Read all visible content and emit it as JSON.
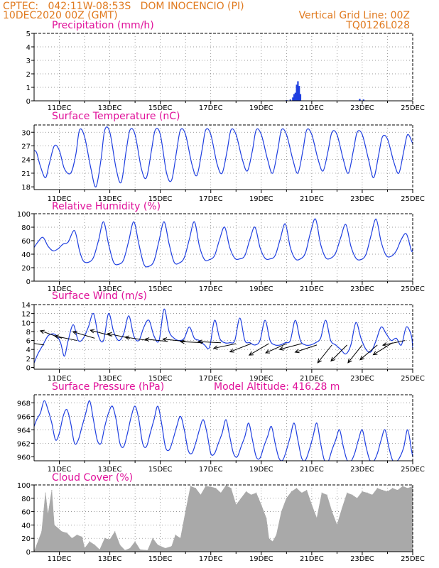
{
  "header": {
    "line1_left": "CPTEC:   042:11W-08:53S   DOM INOCENCIO (PI)",
    "line2_left": "10DEC2020 00Z (GMT)",
    "line2_right": "Vertical Grid Line: 00Z",
    "line3_right": "TQ0126L028"
  },
  "colors": {
    "header": "#e07a1f",
    "title": "#e0119a",
    "series": "#1f3fe0",
    "wind_barb": "#000000",
    "cloud_fill": "#a9a9a9",
    "grid": "#777777"
  },
  "x_tick_labels": [
    "11DEC",
    "13DEC",
    "15DEC",
    "17DEC",
    "19DEC",
    "21DEC",
    "23DEC",
    "25DEC"
  ],
  "x_tick_days": [
    11,
    13,
    15,
    17,
    19,
    21,
    23,
    25
  ],
  "x_range_days": [
    10.0,
    25.0
  ],
  "chart_data": [
    {
      "type": "bar",
      "title": "Precipitation (mm/h)",
      "ylim": [
        0,
        5
      ],
      "yticks": [
        0,
        1,
        2,
        3,
        4,
        5
      ],
      "x_days": [
        20.0,
        20.15,
        20.25,
        20.3,
        20.35,
        20.4,
        20.45,
        20.5,
        20.55,
        22.9,
        23.05
      ],
      "values": [
        0.05,
        0.1,
        0.25,
        0.5,
        0.6,
        1.2,
        1.45,
        1.1,
        0.5,
        0.15,
        0.1
      ]
    },
    {
      "type": "line",
      "title": "Surface Temperature (nC)",
      "ylim": [
        17.4,
        31.6
      ],
      "yticks": [
        18,
        21,
        24,
        27,
        30
      ],
      "x_days": [
        10.0,
        10.1,
        10.25,
        10.45,
        10.6,
        10.8,
        11.0,
        11.2,
        11.45,
        11.65,
        11.8,
        12.0,
        12.25,
        12.45,
        12.65,
        12.8,
        13.0,
        13.25,
        13.45,
        13.65,
        13.8,
        14.0,
        14.25,
        14.45,
        14.65,
        14.8,
        15.0,
        15.25,
        15.45,
        15.65,
        15.8,
        16.0,
        16.25,
        16.45,
        16.65,
        16.8,
        17.0,
        17.25,
        17.45,
        17.65,
        17.8,
        18.0,
        18.25,
        18.45,
        18.65,
        18.8,
        19.0,
        19.25,
        19.45,
        19.65,
        19.8,
        20.0,
        20.25,
        20.45,
        20.65,
        20.8,
        21.0,
        21.25,
        21.45,
        21.65,
        21.8,
        22.0,
        22.25,
        22.45,
        22.65,
        22.8,
        23.0,
        23.25,
        23.45,
        23.65,
        23.8,
        24.0,
        24.25,
        24.45,
        24.65,
        24.8,
        25.0
      ],
      "values": [
        26,
        25.5,
        22.5,
        20,
        23,
        27,
        26,
        22,
        21,
        25,
        30.5,
        29,
        22,
        18,
        24,
        30.5,
        30,
        22,
        19,
        26,
        30.5,
        29.5,
        22,
        20,
        26,
        30.5,
        29.5,
        21,
        19.5,
        26,
        30.5,
        29.5,
        23,
        20.5,
        26,
        30.5,
        29.5,
        23,
        21,
        26,
        30.5,
        29.5,
        24,
        21.5,
        26,
        30.5,
        29.5,
        24,
        21,
        26,
        30.5,
        29.5,
        24,
        21,
        26,
        30.5,
        29.5,
        24,
        21.5,
        26,
        30,
        29.5,
        24,
        21,
        26,
        30,
        29.5,
        24,
        20,
        25,
        29,
        28.5,
        23.5,
        21,
        26,
        29.5,
        27.5
      ]
    },
    {
      "type": "line",
      "title": "Relative Humidity (%)",
      "ylim": [
        0,
        100
      ],
      "yticks": [
        0,
        20,
        40,
        60,
        80,
        100
      ],
      "x_days": [
        10.0,
        10.15,
        10.35,
        10.55,
        10.75,
        10.95,
        11.15,
        11.35,
        11.6,
        11.8,
        11.95,
        12.15,
        12.35,
        12.55,
        12.75,
        12.95,
        13.15,
        13.35,
        13.55,
        13.75,
        13.95,
        14.15,
        14.35,
        14.55,
        14.75,
        14.95,
        15.15,
        15.35,
        15.55,
        15.75,
        15.95,
        16.15,
        16.35,
        16.55,
        16.75,
        16.95,
        17.15,
        17.35,
        17.55,
        17.75,
        17.95,
        18.15,
        18.35,
        18.55,
        18.75,
        18.95,
        19.15,
        19.35,
        19.55,
        19.75,
        19.95,
        20.15,
        20.35,
        20.55,
        20.75,
        20.95,
        21.15,
        21.35,
        21.55,
        21.75,
        21.95,
        22.15,
        22.35,
        22.55,
        22.75,
        22.95,
        23.15,
        23.35,
        23.55,
        23.75,
        23.95,
        24.15,
        24.35,
        24.55,
        24.75,
        24.95,
        25.0
      ],
      "values": [
        50,
        58,
        65,
        52,
        45,
        48,
        55,
        58,
        75,
        45,
        30,
        28,
        35,
        60,
        88,
        55,
        28,
        25,
        32,
        60,
        88,
        55,
        25,
        22,
        30,
        60,
        88,
        55,
        28,
        27,
        35,
        62,
        88,
        52,
        32,
        32,
        38,
        62,
        80,
        50,
        34,
        33,
        38,
        62,
        80,
        50,
        34,
        33,
        38,
        62,
        85,
        50,
        33,
        33,
        42,
        72,
        92,
        55,
        35,
        34,
        42,
        65,
        84,
        52,
        34,
        32,
        40,
        68,
        92,
        58,
        38,
        37,
        45,
        62,
        70,
        45,
        48
      ]
    },
    {
      "type": "line",
      "title": "Surface Wind (m/s)",
      "ylim": [
        -0.4,
        14
      ],
      "yticks": [
        0,
        2,
        4,
        6,
        8,
        10,
        12,
        14
      ],
      "x_days": [
        10.0,
        10.15,
        10.35,
        10.55,
        10.75,
        10.9,
        11.05,
        11.2,
        11.35,
        11.55,
        11.75,
        11.95,
        12.15,
        12.35,
        12.55,
        12.75,
        12.95,
        13.15,
        13.35,
        13.55,
        13.75,
        13.95,
        14.15,
        14.35,
        14.55,
        14.75,
        14.95,
        15.15,
        15.35,
        15.55,
        15.75,
        15.95,
        16.15,
        16.35,
        16.55,
        16.75,
        16.95,
        17.15,
        17.35,
        17.55,
        17.75,
        17.95,
        18.15,
        18.35,
        18.55,
        18.75,
        18.95,
        19.15,
        19.35,
        19.55,
        19.75,
        19.95,
        20.15,
        20.35,
        20.55,
        20.75,
        20.95,
        21.15,
        21.35,
        21.55,
        21.75,
        21.95,
        22.15,
        22.35,
        22.55,
        22.75,
        22.95,
        23.15,
        23.35,
        23.55,
        23.75,
        23.95,
        24.15,
        24.35,
        24.55,
        24.75,
        24.95,
        25.0
      ],
      "values": [
        1,
        3,
        5,
        7,
        7.5,
        7,
        5.5,
        2.5,
        6,
        9.5,
        6,
        6.5,
        9,
        12,
        7,
        6,
        12,
        8,
        6,
        7.5,
        11.5,
        7,
        6,
        9,
        10.5,
        7,
        6,
        13,
        8,
        6.5,
        6,
        6.5,
        9,
        6.5,
        6,
        5,
        4.5,
        10.5,
        6.5,
        5.5,
        5.5,
        6,
        11,
        6,
        5.5,
        5,
        6,
        10.5,
        6,
        5,
        5,
        5.5,
        6,
        10.5,
        6,
        5,
        5,
        5.5,
        6.5,
        10.5,
        6,
        5,
        4,
        3,
        5,
        10,
        6.5,
        4,
        3.5,
        6,
        9,
        7.5,
        6,
        6.5,
        5,
        9,
        7,
        4
      ]
    },
    {
      "type": "line",
      "title": "Surface Pressure (hPa)",
      "annotation": "Model Altitude: 416.28 m",
      "ylim": [
        959.4,
        969.2
      ],
      "yticks": [
        960,
        962,
        964,
        966,
        968
      ],
      "x_days": [
        10.0,
        10.1,
        10.25,
        10.4,
        10.55,
        10.7,
        10.85,
        11.0,
        11.15,
        11.3,
        11.45,
        11.6,
        11.75,
        11.9,
        12.05,
        12.2,
        12.35,
        12.5,
        12.65,
        12.8,
        12.95,
        13.1,
        13.25,
        13.4,
        13.55,
        13.7,
        13.85,
        14.0,
        14.15,
        14.3,
        14.45,
        14.6,
        14.75,
        14.9,
        15.05,
        15.2,
        15.35,
        15.5,
        15.65,
        15.8,
        15.95,
        16.1,
        16.25,
        16.4,
        16.55,
        16.7,
        16.85,
        17.0,
        17.15,
        17.3,
        17.45,
        17.6,
        17.75,
        17.9,
        18.05,
        18.2,
        18.35,
        18.5,
        18.65,
        18.8,
        18.95,
        19.1,
        19.25,
        19.4,
        19.55,
        19.7,
        19.85,
        20.0,
        20.15,
        20.3,
        20.45,
        20.6,
        20.75,
        20.9,
        21.05,
        21.2,
        21.35,
        21.5,
        21.65,
        21.8,
        21.95,
        22.1,
        22.25,
        22.4,
        22.55,
        22.7,
        22.85,
        23.0,
        23.15,
        23.3,
        23.45,
        23.6,
        23.75,
        23.9,
        24.05,
        24.2,
        24.35,
        24.5,
        24.65,
        24.8,
        24.95,
        25.0
      ],
      "values": [
        964.5,
        965.5,
        966.5,
        968.3,
        967,
        965,
        962.5,
        963.5,
        966,
        967,
        965,
        962,
        962.5,
        964.5,
        966.5,
        968.3,
        965.5,
        962.5,
        962,
        964.5,
        966.5,
        967.5,
        965.5,
        962,
        961.5,
        963.5,
        966,
        967.5,
        965.5,
        962,
        961.5,
        963.5,
        965.5,
        967.5,
        965,
        961.5,
        961,
        962.5,
        964.5,
        966,
        964,
        961,
        960.5,
        962,
        964,
        965.5,
        963.5,
        960.5,
        960.5,
        962,
        963.5,
        965.5,
        963,
        960.5,
        960,
        961.5,
        963,
        965,
        962.5,
        960,
        959.8,
        961.5,
        963,
        964.5,
        962,
        959.8,
        959.5,
        961,
        963,
        965,
        962.5,
        959.8,
        959.5,
        961,
        963,
        965,
        962,
        959.5,
        959.3,
        961,
        962.5,
        964,
        961.5,
        959.5,
        959.3,
        960.5,
        962.5,
        964,
        961.5,
        959.5,
        959.3,
        960.5,
        962.5,
        964,
        961.5,
        959.5,
        959.3,
        960,
        961.5,
        964,
        961,
        960
      ]
    },
    {
      "type": "area",
      "title": "Cloud Cover (%)",
      "ylim": [
        0,
        100
      ],
      "yticks": [
        0,
        20,
        40,
        60,
        80,
        100
      ],
      "x_days": [
        10.0,
        10.3,
        10.45,
        10.55,
        10.7,
        10.8,
        10.95,
        11.1,
        11.3,
        11.5,
        11.7,
        11.9,
        12.0,
        12.2,
        12.4,
        12.6,
        12.8,
        13.0,
        13.2,
        13.4,
        13.6,
        13.8,
        14.0,
        14.2,
        14.5,
        14.7,
        14.9,
        15.2,
        15.45,
        15.6,
        15.8,
        16.0,
        16.2,
        16.4,
        16.6,
        16.8,
        17.0,
        17.2,
        17.4,
        17.6,
        17.8,
        18.0,
        18.2,
        18.4,
        18.6,
        18.8,
        19.0,
        19.2,
        19.3,
        19.45,
        19.6,
        19.8,
        20.0,
        20.2,
        20.4,
        20.6,
        20.8,
        21.0,
        21.2,
        21.4,
        21.6,
        21.8,
        22.0,
        22.2,
        22.4,
        22.6,
        22.8,
        23.0,
        23.2,
        23.4,
        23.6,
        23.8,
        24.0,
        24.2,
        24.4,
        24.6,
        24.8,
        25.0
      ],
      "values": [
        0,
        30,
        88,
        55,
        92,
        40,
        35,
        30,
        28,
        20,
        25,
        22,
        5,
        15,
        10,
        3,
        20,
        18,
        30,
        10,
        2,
        5,
        15,
        3,
        2,
        20,
        10,
        5,
        8,
        25,
        20,
        60,
        98,
        95,
        85,
        98,
        97,
        95,
        88,
        99,
        95,
        70,
        80,
        90,
        85,
        88,
        70,
        50,
        20,
        15,
        25,
        60,
        80,
        90,
        95,
        88,
        92,
        70,
        50,
        88,
        85,
        60,
        40,
        65,
        88,
        85,
        80,
        90,
        88,
        85,
        95,
        92,
        90,
        95,
        92,
        98,
        95,
        98
      ]
    }
  ],
  "wind_vectors": {
    "x_days": [
      10.4,
      11.1,
      11.7,
      12.4,
      13.1,
      13.8,
      14.5,
      15.3,
      16.0,
      16.7,
      17.4,
      18.0,
      18.6,
      19.3,
      20.0,
      20.6,
      21.2,
      21.8,
      22.4,
      23.0,
      23.6,
      24.2,
      24.7
    ],
    "speed": [
      5,
      6.5,
      6,
      6.5,
      7,
      6.5,
      6,
      5.8,
      5.8,
      5.5,
      5.5,
      5.3,
      5.3,
      5.3,
      5.3,
      5.3,
      5,
      5,
      5,
      5,
      5,
      5.5,
      6
    ],
    "u": [
      -1,
      -1,
      -1,
      -1,
      -0.95,
      -0.95,
      -1,
      -1,
      -1,
      -1,
      -1,
      -0.95,
      -0.9,
      -0.85,
      -0.9,
      -0.95,
      -0.9,
      -0.6,
      -0.7,
      -0.6,
      -0.7,
      -0.8,
      -0.95
    ],
    "v": [
      0.15,
      0.35,
      0.2,
      0.3,
      0.25,
      0.2,
      0.15,
      0.1,
      0.1,
      0.05,
      0.05,
      -0.2,
      -0.35,
      -0.5,
      -0.4,
      -0.25,
      -0.3,
      -0.75,
      -0.7,
      -0.75,
      -0.6,
      -0.5,
      -0.2
    ]
  }
}
